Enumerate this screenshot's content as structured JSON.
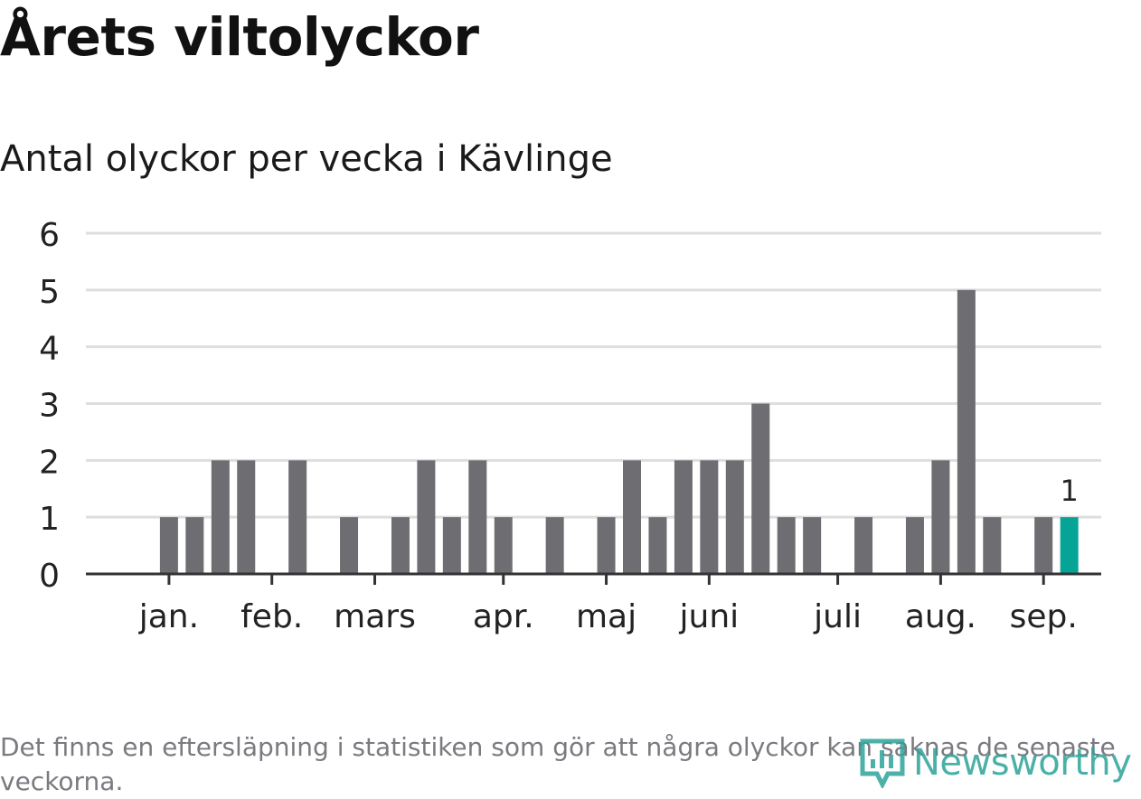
{
  "header": {
    "title": "Årets viltolyckor",
    "subtitle": "Antal olyckor per vecka i Kävlinge"
  },
  "footer": {
    "note": "Det finns en eftersläpning i statistiken som gör att några olyckor kan saknas de senaste veckorna.",
    "brand": "Newsworthy",
    "brand_icon": "bar-chart-badge-icon"
  },
  "colors": {
    "bar": "#6e6d72",
    "highlight": "#06a397",
    "grid": "#dedede",
    "axis": "#333333",
    "brand": "#2ba39a"
  },
  "chart_data": {
    "type": "bar",
    "title": "Årets viltolyckor",
    "subtitle": "Antal olyckor per vecka i Kävlinge",
    "x_unit": "week",
    "weeks": [
      1,
      2,
      3,
      4,
      5,
      6,
      7,
      8,
      9,
      10,
      11,
      12,
      13,
      14,
      15,
      16,
      17,
      18,
      19,
      20,
      21,
      22,
      23,
      24,
      25,
      26,
      27,
      28,
      29,
      30,
      31,
      32,
      33,
      34,
      35,
      36,
      37,
      38
    ],
    "values": [
      0,
      0,
      1,
      1,
      2,
      2,
      0,
      2,
      0,
      1,
      0,
      1,
      2,
      1,
      2,
      1,
      0,
      1,
      0,
      1,
      2,
      1,
      2,
      2,
      2,
      3,
      1,
      1,
      0,
      1,
      0,
      1,
      2,
      5,
      1,
      0,
      1,
      1
    ],
    "highlight_week": 38,
    "highlight_label": "1",
    "month_ticks": [
      {
        "label": "jan.",
        "week": 3
      },
      {
        "label": "feb.",
        "week": 7
      },
      {
        "label": "mars",
        "week": 11
      },
      {
        "label": "apr.",
        "week": 16
      },
      {
        "label": "maj",
        "week": 20
      },
      {
        "label": "juni",
        "week": 24
      },
      {
        "label": "juli",
        "week": 29
      },
      {
        "label": "aug.",
        "week": 33
      },
      {
        "label": "sep.",
        "week": 37
      }
    ],
    "yticks": [
      0,
      1,
      2,
      3,
      4,
      5,
      6
    ],
    "ylim": [
      0,
      6
    ],
    "grid": true,
    "legend": "none"
  }
}
